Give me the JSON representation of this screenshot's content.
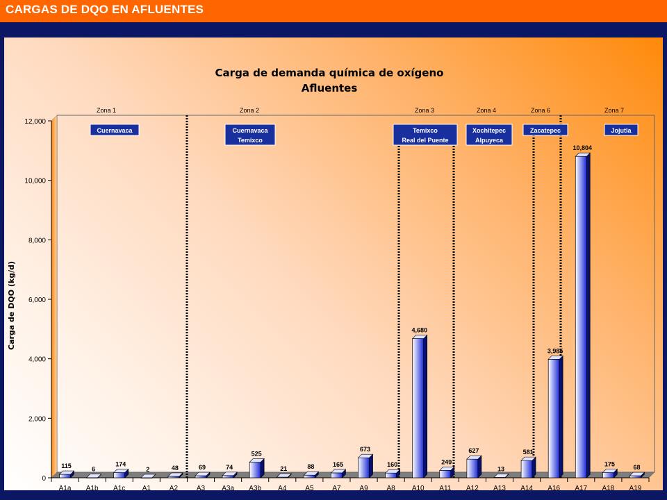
{
  "slide": {
    "title": "CARGAS DE DQO EN AFLUENTES"
  },
  "colors": {
    "slide_bg": "#ff6600",
    "frame": "#0b1763",
    "bar_dark": "#1b2bd8",
    "bar_light": "#ffffff",
    "city_box": "#1a2f9e"
  },
  "chart_data": {
    "type": "bar",
    "title": "Carga de demanda química de oxígeno",
    "subtitle": "Afluentes",
    "xlabel": "",
    "ylabel": "Carga de DQO (kg/d)",
    "ylim": [
      0,
      12000
    ],
    "yticks": [
      "0",
      "2,000",
      "4,000",
      "6,000",
      "8,000",
      "10,000",
      "12,000"
    ],
    "categories": [
      "A1a",
      "A1b",
      "A1c",
      "A1",
      "A2",
      "A3",
      "A3a",
      "A3b",
      "A4",
      "A5",
      "A7",
      "A9",
      "A8",
      "A10",
      "A11",
      "A12",
      "A13",
      "A14",
      "A16",
      "A17",
      "A18",
      "A19"
    ],
    "values": [
      115,
      6,
      174,
      2,
      48,
      69,
      74,
      525,
      21,
      88,
      165,
      673,
      160,
      4680,
      249,
      627,
      13,
      581,
      3985,
      10804,
      175,
      68
    ],
    "value_labels": [
      "115",
      "6",
      "174",
      "2",
      "48",
      "69",
      "74",
      "525",
      "21",
      "88",
      "165",
      "673",
      "160",
      "4,680",
      "249",
      "627",
      "13",
      "581",
      "3,985",
      "10,804",
      "175",
      "68"
    ],
    "grid": false,
    "legend": "none",
    "zones": [
      {
        "label": "Zona 1",
        "cities": [
          "Cuernavaca"
        ]
      },
      {
        "label": "Zona  2",
        "cities": [
          "Cuernavaca",
          "Temixco"
        ]
      },
      {
        "label": "Zona 3",
        "cities": [
          "Temixco",
          "Real del Puente"
        ]
      },
      {
        "label": "Zona 4",
        "cities": [
          "Xochitepec",
          "Alpuyeca"
        ]
      },
      {
        "label": "Zona 6",
        "cities": [
          "Zacatepec"
        ]
      },
      {
        "label": "Zona 7",
        "cities": [
          "Jojutla"
        ]
      }
    ]
  }
}
